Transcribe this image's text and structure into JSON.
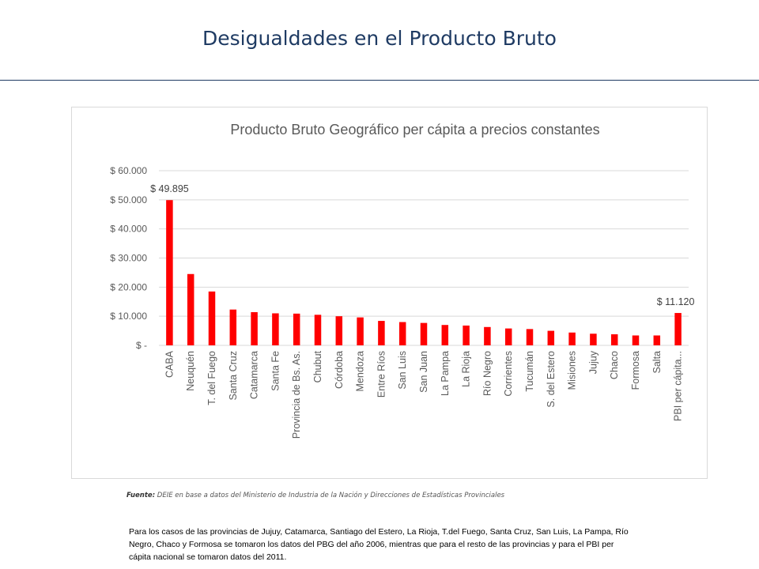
{
  "slide": {
    "title": "Desigualdades en el Producto Bruto"
  },
  "source": {
    "label": "Fuente:",
    "text": "DEIE en base a datos del Ministerio de Industria de la Nación y Direcciones de Estadísticas Provinciales"
  },
  "footnote": "Para los casos de las provincias de Jujuy, Catamarca, Santiago del Estero, La Rioja, T.del Fuego, Santa Cruz, San Luis, La Pampa, Río Negro, Chaco y Formosa se tomaron los datos del PBG del año 2006, mientras que para el resto de las provincias y para el PBI per cápita nacional se tomaron datos del 2011.",
  "chart_data": {
    "type": "bar",
    "title": "Producto Bruto Geográfico per cápita a precios constantes",
    "xlabel": "",
    "ylabel": "",
    "ylim": [
      0,
      60000
    ],
    "yticks": [
      0,
      10000,
      20000,
      30000,
      40000,
      50000,
      60000
    ],
    "ytick_labels": [
      "$ -",
      "$ 10.000",
      "$ 20.000",
      "$ 30.000",
      "$ 40.000",
      "$ 50.000",
      "$ 60.000"
    ],
    "grid": true,
    "legend": "none",
    "bar_color": "#ff0000",
    "categories": [
      "CABA",
      "Neuquén",
      "T. del Fuego",
      "Santa Cruz",
      "Catamarca",
      "Santa Fe",
      "Provincia de Bs. As.",
      "Chubut",
      "Córdoba",
      "Mendoza",
      "Entre Ríos",
      "San Luis",
      "San Juan",
      "La Pampa",
      "La Rioja",
      "Río Negro",
      "Corrientes",
      "Tucumán",
      "S. del Estero",
      "Misiones",
      "Jujuy",
      "Chaco",
      "Formosa",
      "Salta",
      "PBI per cápita..."
    ],
    "values": [
      49895,
      24500,
      18500,
      12300,
      11400,
      11000,
      10900,
      10500,
      10000,
      9600,
      8400,
      8000,
      7700,
      7000,
      6800,
      6300,
      5800,
      5600,
      5000,
      4400,
      4000,
      3800,
      3400,
      3400,
      11120
    ],
    "data_labels": [
      {
        "index": 0,
        "text": "$ 49.895"
      },
      {
        "index": 24,
        "text": "$ 11.120"
      }
    ]
  }
}
